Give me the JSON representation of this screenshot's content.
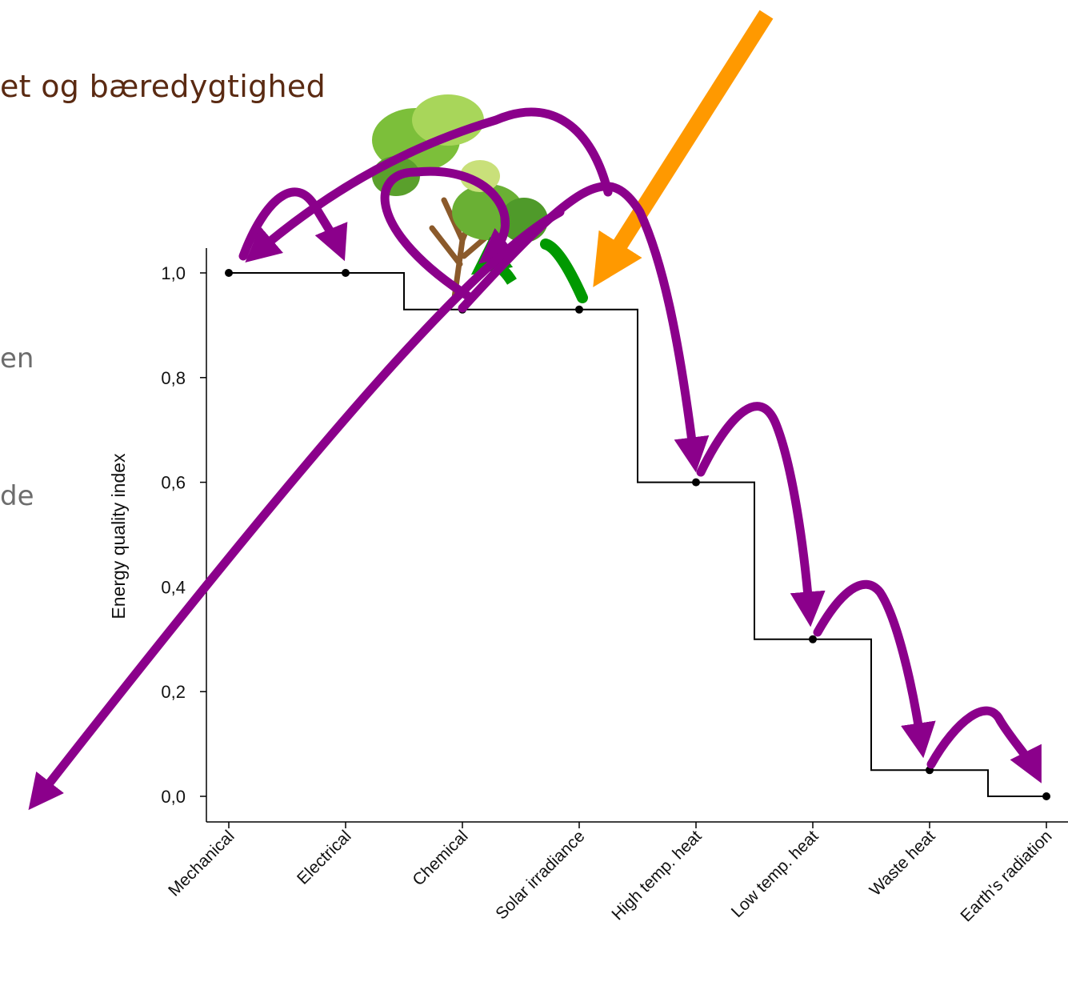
{
  "slide": {
    "title": "et og bæredygtighed",
    "fragments": [
      "en",
      "de"
    ]
  },
  "chart_data": {
    "type": "line",
    "ylabel": "Energy quality index",
    "xlabel": "",
    "categories": [
      "Mechanical",
      "Electrical",
      "Chemical",
      "Solar irradiance",
      "High temp. heat",
      "Low temp. heat",
      "Waste heat",
      "Earth's radiation"
    ],
    "values": [
      1.0,
      1.0,
      0.93,
      0.93,
      0.6,
      0.3,
      0.05,
      0.0
    ],
    "yticks": [
      "0,0",
      "0,2",
      "0,4",
      "0,6",
      "0,8",
      "1,0"
    ],
    "ylim": [
      0,
      1.0
    ],
    "step_line": true,
    "grid": false,
    "colors": {
      "step": "#000000",
      "flow_arrows": "#8b008b",
      "sun_arrow": "#ff9900",
      "photosynthesis_arrow": "#009900",
      "title": "#5a2a12"
    }
  }
}
